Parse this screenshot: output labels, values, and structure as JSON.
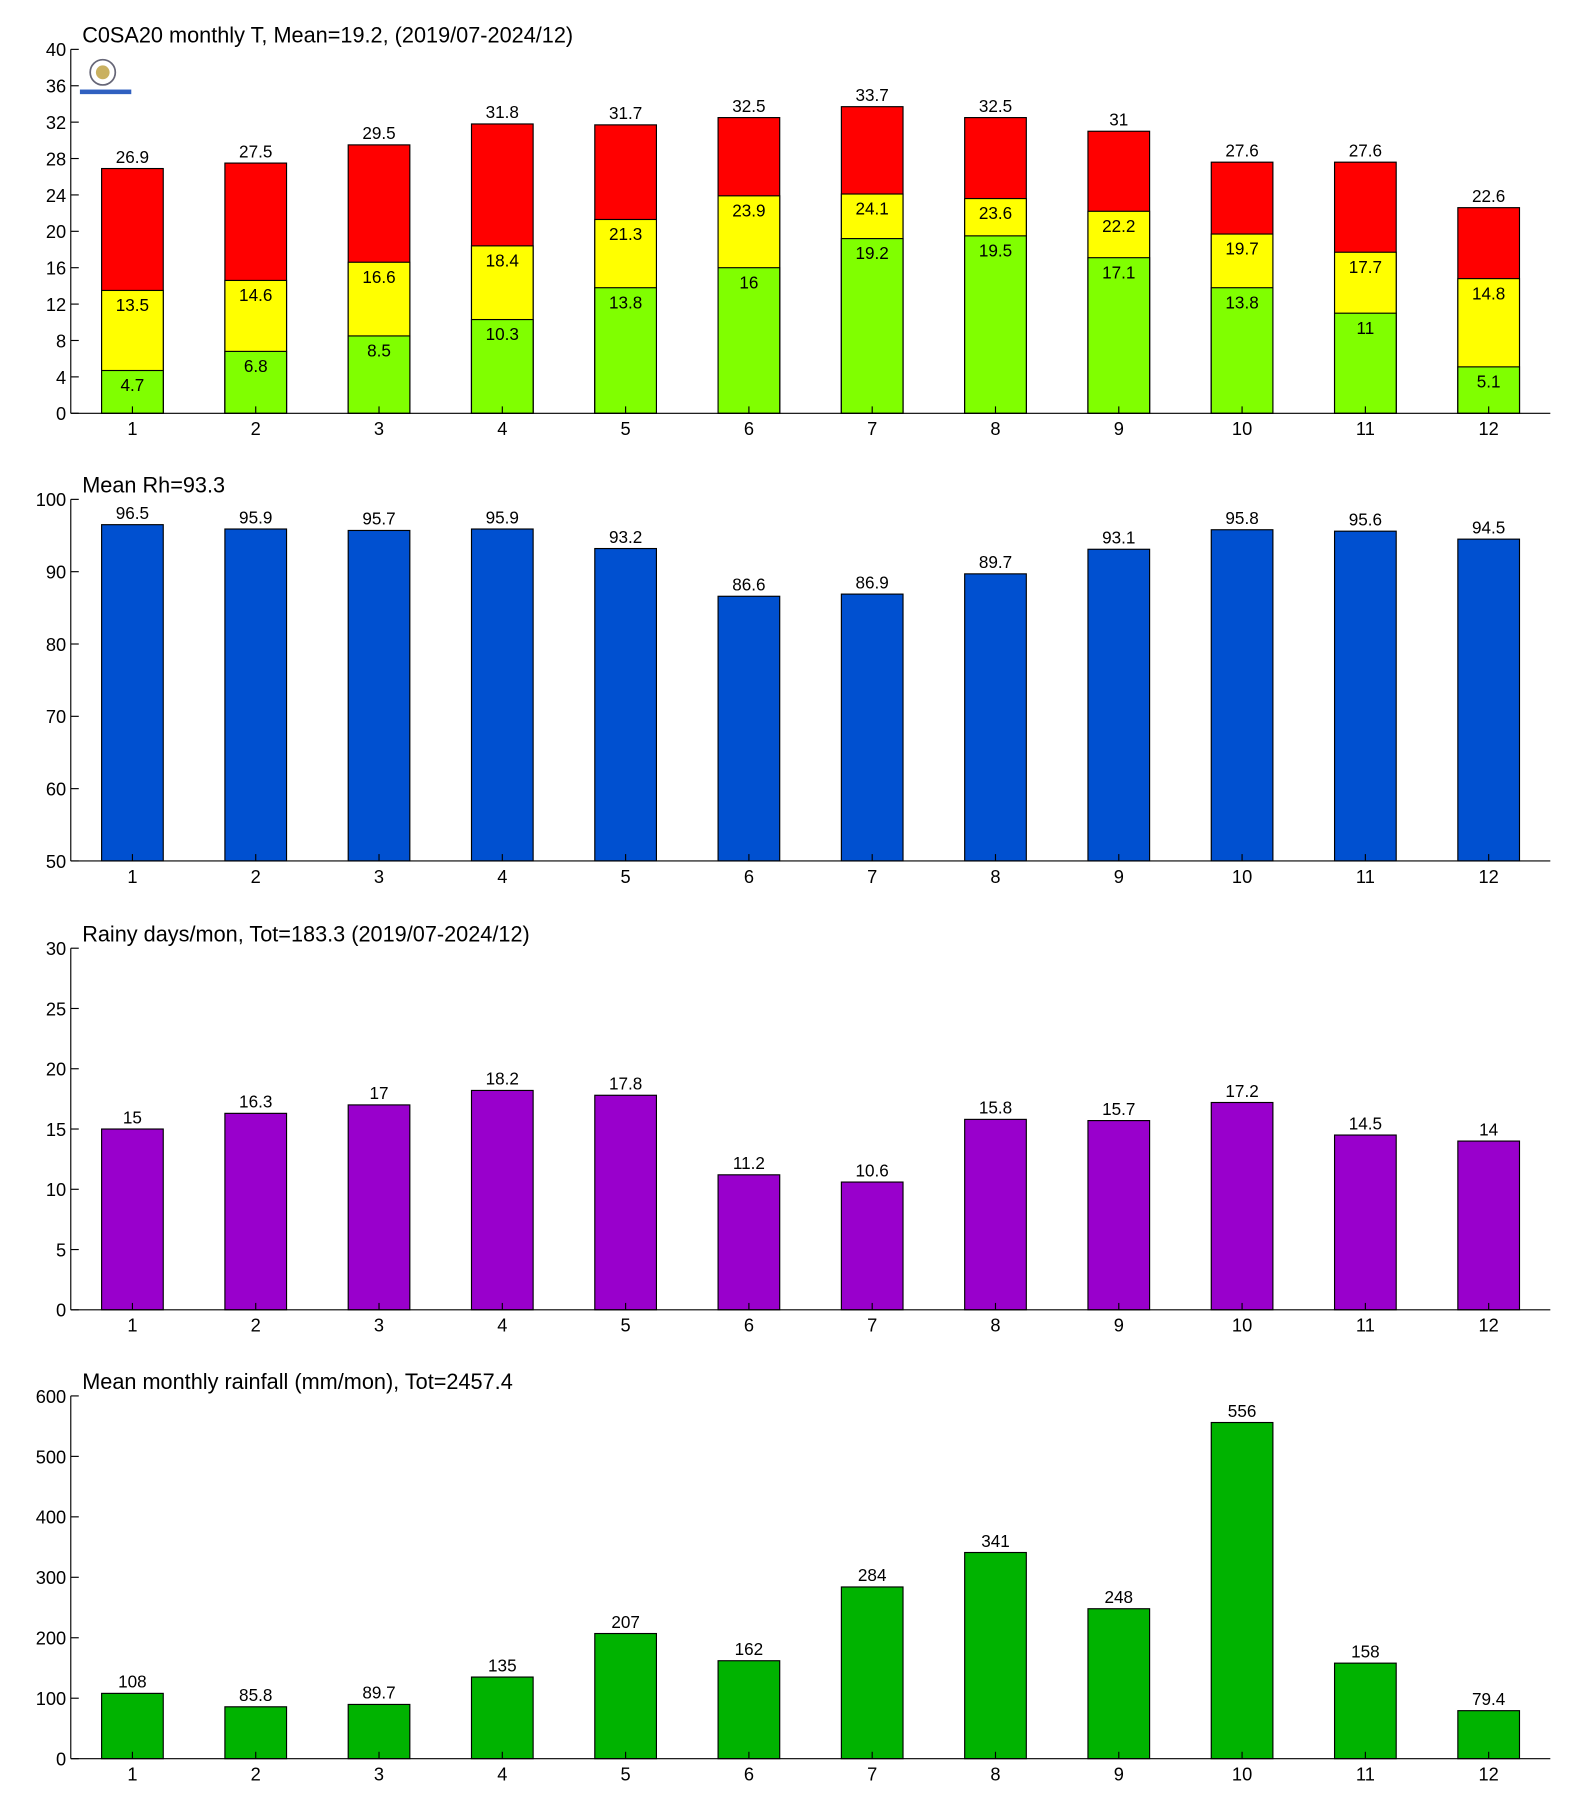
{
  "chart_data": [
    {
      "type": "bar",
      "barmode": "overlay",
      "title": "C0SA20 monthly T, Mean=19.2, (2019/07-2024/12)",
      "categories": [
        "1",
        "2",
        "3",
        "4",
        "5",
        "6",
        "7",
        "8",
        "9",
        "10",
        "11",
        "12"
      ],
      "series": [
        {
          "color": "#80ff00",
          "values": [
            4.7,
            6.8,
            8.5,
            10.3,
            13.8,
            16,
            19.2,
            19.5,
            17.1,
            13.8,
            11,
            5.1
          ]
        },
        {
          "color": "#ffff00",
          "values": [
            13.5,
            14.6,
            16.6,
            18.4,
            21.3,
            23.9,
            24.1,
            23.6,
            22.2,
            19.7,
            17.7,
            14.8
          ]
        },
        {
          "color": "#ff0000",
          "values": [
            26.9,
            27.5,
            29.5,
            31.8,
            31.7,
            32.5,
            33.7,
            32.5,
            31,
            27.6,
            27.6,
            22.6
          ]
        }
      ],
      "ylim": [
        0,
        40
      ],
      "yticks": [
        0,
        4,
        8,
        12,
        16,
        20,
        24,
        28,
        32,
        36,
        40
      ]
    },
    {
      "type": "bar",
      "title": "Mean Rh=93.3",
      "categories": [
        "1",
        "2",
        "3",
        "4",
        "5",
        "6",
        "7",
        "8",
        "9",
        "10",
        "11",
        "12"
      ],
      "series": [
        {
          "color": "#0050d0",
          "values": [
            96.5,
            95.9,
            95.7,
            95.9,
            93.2,
            86.6,
            86.9,
            89.7,
            93.1,
            95.8,
            95.6,
            94.5
          ]
        }
      ],
      "ylim": [
        50,
        100
      ],
      "yticks": [
        50,
        60,
        70,
        80,
        90,
        100
      ]
    },
    {
      "type": "bar",
      "title": "Rainy days/mon, Tot=183.3 (2019/07-2024/12)",
      "categories": [
        "1",
        "2",
        "3",
        "4",
        "5",
        "6",
        "7",
        "8",
        "9",
        "10",
        "11",
        "12"
      ],
      "series": [
        {
          "color": "#9900cc",
          "values": [
            15,
            16.3,
            17,
            18.2,
            17.8,
            11.2,
            10.6,
            15.8,
            15.7,
            17.2,
            14.5,
            14
          ]
        }
      ],
      "ylim": [
        0,
        30
      ],
      "yticks": [
        0,
        5,
        10,
        15,
        20,
        25,
        30
      ]
    },
    {
      "type": "bar",
      "title": "Mean monthly rainfall (mm/mon), Tot=2457.4",
      "categories": [
        "1",
        "2",
        "3",
        "4",
        "5",
        "6",
        "7",
        "8",
        "9",
        "10",
        "11",
        "12"
      ],
      "series": [
        {
          "color": "#00b300",
          "values": [
            108,
            85.8,
            89.7,
            135,
            207,
            162,
            284,
            341,
            248,
            556,
            158,
            79.4
          ]
        }
      ],
      "ylim": [
        0,
        600
      ],
      "yticks": [
        0,
        100,
        200,
        300,
        400,
        500,
        600
      ]
    }
  ]
}
